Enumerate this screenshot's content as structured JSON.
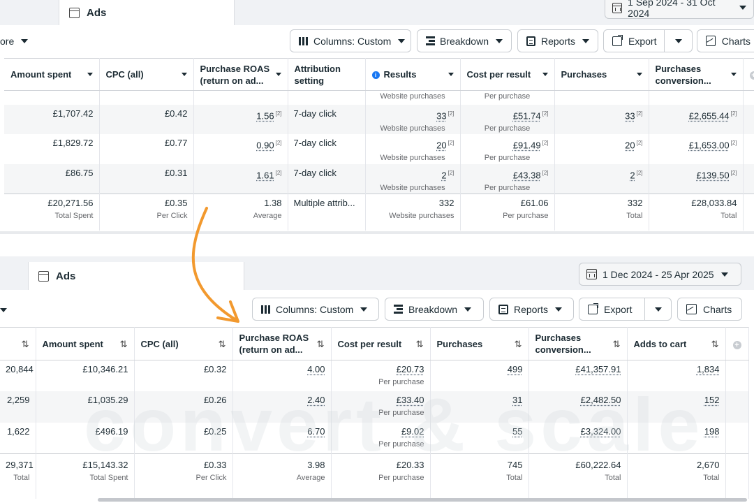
{
  "top": {
    "tab_label": "Ads",
    "date_range": "1 Sep 2024 - 31 Oct 2024",
    "more_label": "ore",
    "toolbar": {
      "columns_label": "Columns: Custom",
      "breakdown_label": "Breakdown",
      "reports_label": "Reports",
      "export_label": "Export",
      "charts_label": "Charts"
    },
    "headers": {
      "amount_spent": "Amount spent",
      "cpc": "CPC (all)",
      "roas": "Purchase ROAS (return on ad...",
      "attribution": "Attribution setting",
      "results": "Results",
      "cost_per_result": "Cost per result",
      "purchases": "Purchases",
      "purchases_conv": "Purchases conversion..."
    },
    "partial_row": {
      "results_sub": "Website purchases",
      "cost_sub": "Per purchase"
    },
    "rows": [
      {
        "amount": "£1,707.42",
        "cpc": "£0.42",
        "roas": "1.56",
        "attribution": "7-day click",
        "results": "33",
        "results_sub": "Website purchases",
        "cost": "£51.74",
        "cost_sub": "Per purchase",
        "purchases": "33",
        "conv": "£2,655.44",
        "sup": "[2]"
      },
      {
        "amount": "£1,829.72",
        "cpc": "£0.77",
        "roas": "0.90",
        "attribution": "7-day click",
        "results": "20",
        "results_sub": "Website purchases",
        "cost": "£91.49",
        "cost_sub": "Per purchase",
        "purchases": "20",
        "conv": "£1,653.00",
        "sup": "[2]"
      },
      {
        "amount": "£86.75",
        "cpc": "£0.31",
        "roas": "1.61",
        "attribution": "7-day click",
        "results": "2",
        "results_sub": "Website purchases",
        "cost": "£43.38",
        "cost_sub": "Per purchase",
        "purchases": "2",
        "conv": "£139.50",
        "sup": "[2]"
      }
    ],
    "total": {
      "amount": "£20,271.56",
      "amount_sub": "Total Spent",
      "cpc": "£0.35",
      "cpc_sub": "Per Click",
      "roas": "1.38",
      "roas_sub": "Average",
      "attribution": "Multiple attrib...",
      "results": "332",
      "results_sub": "Website purchases",
      "cost": "£61.06",
      "cost_sub": "Per purchase",
      "purchases": "332",
      "purchases_sub": "Total",
      "conv": "£28,033.84",
      "conv_sub": "Total"
    }
  },
  "bottom": {
    "tab_label": "Ads",
    "date_range": "1 Dec 2024 - 25 Apr 2025",
    "toolbar": {
      "columns_label": "Columns: Custom",
      "breakdown_label": "Breakdown",
      "reports_label": "Reports",
      "export_label": "Export",
      "charts_label": "Charts"
    },
    "sort_glyph": "⇅",
    "headers": {
      "amount_spent": "Amount spent",
      "cpc": "CPC (all)",
      "roas": "Purchase ROAS (return on ad...",
      "cost_per_result": "Cost per result",
      "purchases": "Purchases",
      "purchases_conv": "Purchases conversion...",
      "adds_to_cart": "Adds to cart"
    },
    "rows": [
      {
        "first": "20,844",
        "amount": "£10,346.21",
        "cpc": "£0.32",
        "roas": "4.00",
        "cost": "£20.73",
        "cost_sub": "Per purchase",
        "purchases": "499",
        "conv": "£41,357.91",
        "adds": "1,834"
      },
      {
        "first": "2,259",
        "amount": "£1,035.29",
        "cpc": "£0.26",
        "roas": "2.40",
        "cost": "£33.40",
        "cost_sub": "Per purchase",
        "purchases": "31",
        "conv": "£2,482.50",
        "adds": "152"
      },
      {
        "first": "1,622",
        "amount": "£496.19",
        "cpc": "£0.25",
        "roas": "6.70",
        "cost": "£9.02",
        "cost_sub": "Per purchase",
        "purchases": "55",
        "conv": "£3,324.00",
        "adds": "198"
      }
    ],
    "total": {
      "first": "29,371",
      "first_sub": "Total",
      "amount": "£15,143.32",
      "amount_sub": "Total Spent",
      "cpc": "£0.33",
      "cpc_sub": "Per Click",
      "roas": "3.98",
      "roas_sub": "Average",
      "cost": "£20.33",
      "cost_sub": "Per purchase",
      "purchases": "745",
      "purchases_sub": "Total",
      "conv": "£60,222.64",
      "conv_sub": "Total",
      "adds": "2,670",
      "adds_sub": "Total"
    }
  },
  "watermark_text": "convert & scale",
  "colors": {
    "arrow": "#f2992e",
    "info": "#1877f2",
    "border": "#c8ccd1"
  }
}
